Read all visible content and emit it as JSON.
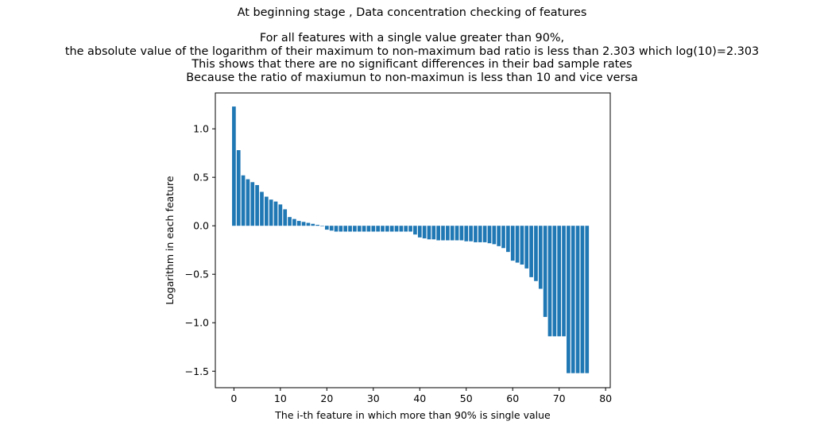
{
  "chart_data": {
    "type": "bar",
    "title": "At beginning stage , Data concentration checking of features",
    "subtitle_lines": [
      "For all features with a single value greater than 90%,",
      "the absolute value of the logarithm of their maximum to non-maximum bad ratio is less than 2.303 which log(10)=2.303",
      "This shows that there are no significant differences in their bad sample rates",
      "Because the ratio of maxiumun to non-maximun is less than 10 and vice versa"
    ],
    "xlabel": "The i-th feature in which more than 90%  is single value",
    "ylabel": "Logarithm in each feature",
    "xlim": [
      -4,
      81
    ],
    "ylim": [
      -1.67,
      1.37
    ],
    "xticks": [
      0,
      10,
      20,
      30,
      40,
      50,
      60,
      70,
      80
    ],
    "yticks": [
      -1.5,
      -1.0,
      -0.5,
      0.0,
      0.5,
      1.0
    ],
    "ytick_labels": [
      "−1.5",
      "−1.0",
      "−0.5",
      "0.0",
      "0.5",
      "1.0"
    ],
    "bar_color": "#1f77b4",
    "bar_width": 0.8,
    "values": [
      1.23,
      0.78,
      0.52,
      0.48,
      0.45,
      0.42,
      0.35,
      0.3,
      0.27,
      0.25,
      0.22,
      0.17,
      0.09,
      0.07,
      0.05,
      0.04,
      0.03,
      0.02,
      0.01,
      0.0,
      -0.04,
      -0.05,
      -0.06,
      -0.06,
      -0.06,
      -0.06,
      -0.06,
      -0.06,
      -0.06,
      -0.06,
      -0.06,
      -0.06,
      -0.06,
      -0.06,
      -0.06,
      -0.06,
      -0.06,
      -0.06,
      -0.06,
      -0.09,
      -0.12,
      -0.13,
      -0.14,
      -0.14,
      -0.15,
      -0.15,
      -0.15,
      -0.15,
      -0.15,
      -0.15,
      -0.16,
      -0.16,
      -0.17,
      -0.17,
      -0.17,
      -0.18,
      -0.19,
      -0.21,
      -0.23,
      -0.27,
      -0.36,
      -0.38,
      -0.4,
      -0.44,
      -0.53,
      -0.57,
      -0.65,
      -0.94,
      -1.14,
      -1.14,
      -1.14,
      -1.14,
      -1.52,
      -1.52,
      -1.52,
      -1.52,
      -1.52
    ]
  }
}
